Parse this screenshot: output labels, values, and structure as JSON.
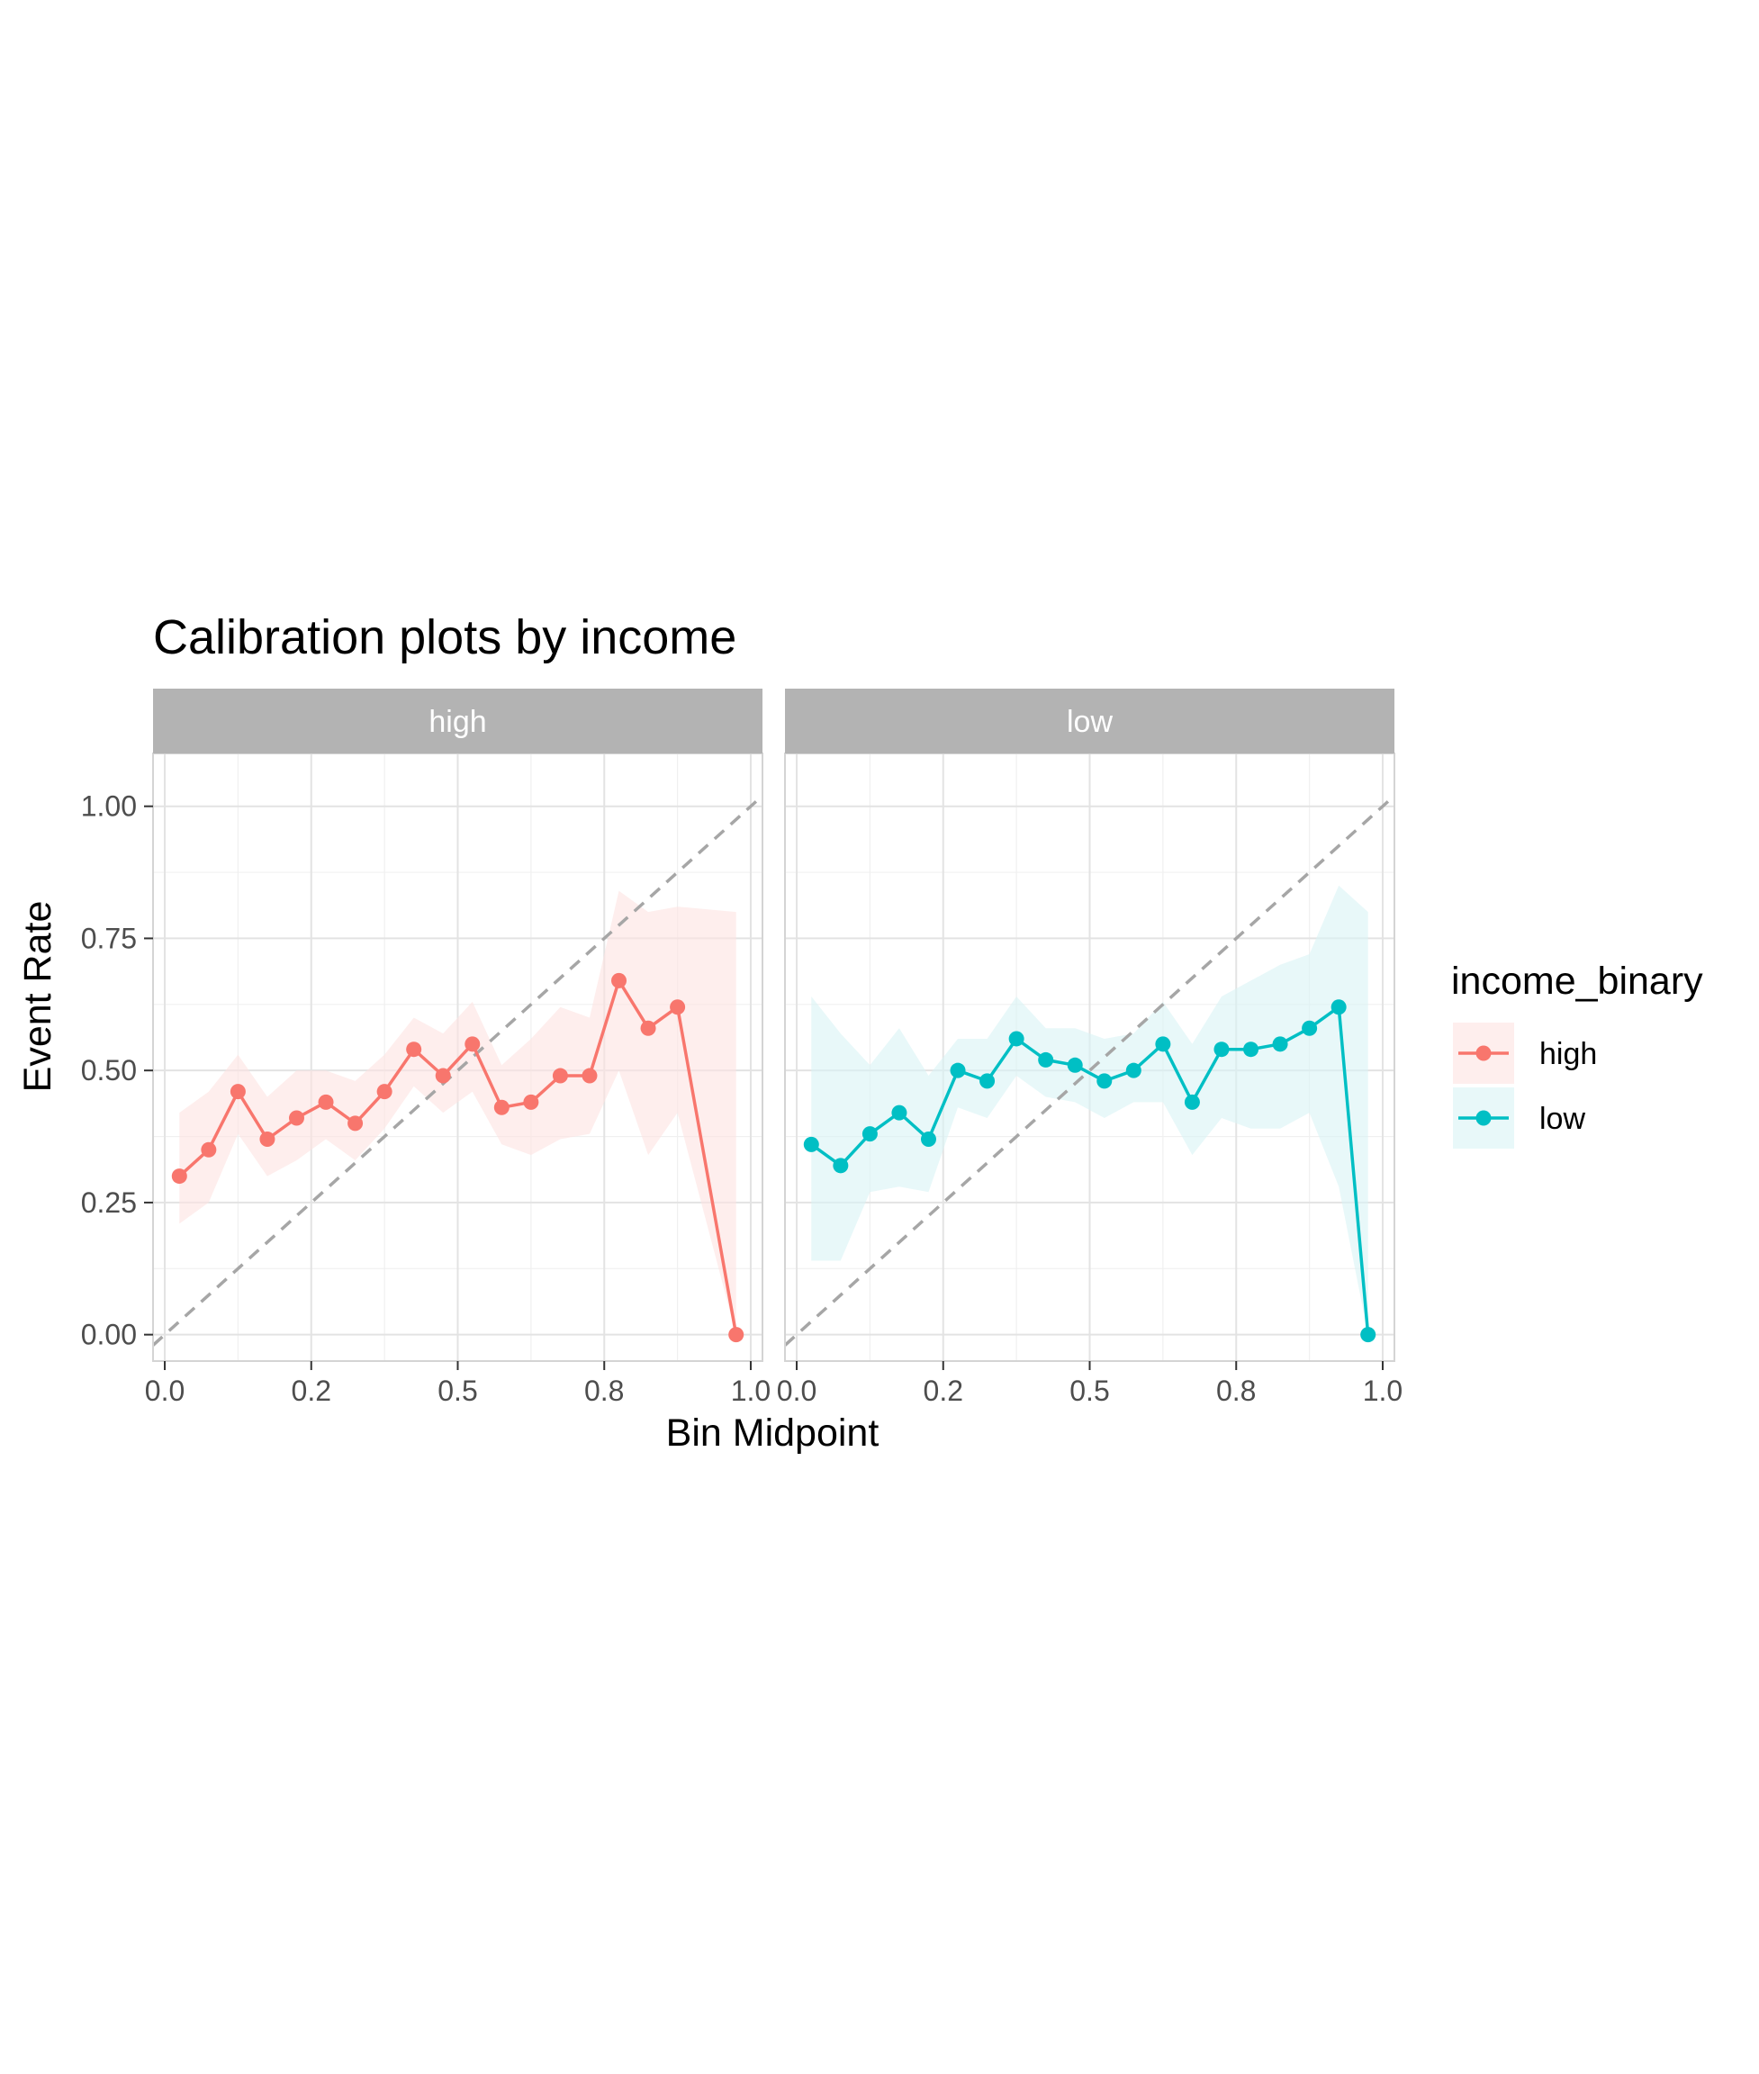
{
  "chart_data": {
    "type": "line",
    "title": "Calibration plots by income",
    "xlabel": "Bin Midpoint",
    "ylabel": "Event Rate",
    "xlim": [
      -0.02,
      1.02
    ],
    "ylim": [
      -0.05,
      1.1
    ],
    "x_ticks": [
      0.0,
      0.25,
      0.5,
      0.75,
      1.0
    ],
    "x_tick_labels": [
      "0.0",
      "0.2",
      "0.5",
      "0.8",
      "1.0"
    ],
    "y_ticks": [
      0.0,
      0.25,
      0.5,
      0.75,
      1.0
    ],
    "y_tick_labels": [
      "0.00",
      "0.25",
      "0.50",
      "0.75",
      "1.00"
    ],
    "grid": true,
    "reference_line": "y = x (dashed)",
    "legend": {
      "title": "income_binary",
      "position": "right",
      "entries": [
        {
          "label": "high",
          "color": "#F8766D"
        },
        {
          "label": "low",
          "color": "#00BFC4"
        }
      ]
    },
    "panels": [
      {
        "strip": "high",
        "color": "#F8766D",
        "ribbon_color": "#FDE3E1",
        "x": [
          0.025,
          0.075,
          0.125,
          0.175,
          0.225,
          0.275,
          0.325,
          0.375,
          0.425,
          0.475,
          0.525,
          0.575,
          0.625,
          0.675,
          0.725,
          0.775,
          0.825,
          0.875,
          0.975
        ],
        "y": [
          0.3,
          0.35,
          0.46,
          0.37,
          0.41,
          0.44,
          0.4,
          0.46,
          0.54,
          0.49,
          0.55,
          0.43,
          0.44,
          0.49,
          0.49,
          0.67,
          0.58,
          0.62,
          0.0
        ],
        "lower": [
          0.21,
          0.25,
          0.38,
          0.3,
          0.33,
          0.37,
          0.33,
          0.39,
          0.47,
          0.42,
          0.46,
          0.36,
          0.34,
          0.37,
          0.38,
          0.5,
          0.34,
          0.42,
          0.0
        ],
        "upper": [
          0.42,
          0.46,
          0.53,
          0.45,
          0.5,
          0.5,
          0.48,
          0.53,
          0.6,
          0.57,
          0.63,
          0.51,
          0.56,
          0.62,
          0.6,
          0.84,
          0.8,
          0.81,
          0.8
        ]
      },
      {
        "strip": "low",
        "color": "#00BFC4",
        "ribbon_color": "#D8F4F5",
        "x": [
          0.025,
          0.075,
          0.125,
          0.175,
          0.225,
          0.275,
          0.325,
          0.375,
          0.425,
          0.475,
          0.525,
          0.575,
          0.625,
          0.675,
          0.725,
          0.775,
          0.825,
          0.875,
          0.925,
          0.975
        ],
        "y": [
          0.36,
          0.32,
          0.38,
          0.42,
          0.37,
          0.5,
          0.48,
          0.56,
          0.52,
          0.51,
          0.48,
          0.5,
          0.55,
          0.44,
          0.54,
          0.54,
          0.55,
          0.58,
          0.62,
          0.0
        ],
        "lower": [
          0.14,
          0.14,
          0.27,
          0.28,
          0.27,
          0.43,
          0.41,
          0.49,
          0.45,
          0.44,
          0.41,
          0.44,
          0.44,
          0.34,
          0.41,
          0.39,
          0.39,
          0.42,
          0.28,
          0.0
        ],
        "upper": [
          0.64,
          0.57,
          0.51,
          0.58,
          0.49,
          0.56,
          0.56,
          0.64,
          0.58,
          0.58,
          0.56,
          0.57,
          0.63,
          0.55,
          0.64,
          0.67,
          0.7,
          0.72,
          0.85,
          0.8
        ]
      }
    ]
  }
}
